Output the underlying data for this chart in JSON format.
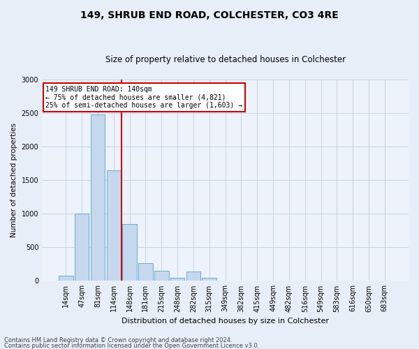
{
  "title": "149, SHRUB END ROAD, COLCHESTER, CO3 4RE",
  "subtitle": "Size of property relative to detached houses in Colchester",
  "xlabel": "Distribution of detached houses by size in Colchester",
  "ylabel": "Number of detached properties",
  "categories": [
    "14sqm",
    "47sqm",
    "81sqm",
    "114sqm",
    "148sqm",
    "181sqm",
    "215sqm",
    "248sqm",
    "282sqm",
    "315sqm",
    "349sqm",
    "382sqm",
    "415sqm",
    "449sqm",
    "482sqm",
    "516sqm",
    "549sqm",
    "583sqm",
    "616sqm",
    "650sqm",
    "683sqm"
  ],
  "values": [
    75,
    1000,
    2475,
    1650,
    850,
    265,
    150,
    50,
    140,
    50,
    0,
    0,
    0,
    0,
    0,
    0,
    0,
    0,
    0,
    0,
    0
  ],
  "bar_color": "#c5d8ee",
  "bar_edge_color": "#6aacd4",
  "vline_color": "#cc0000",
  "vline_x": 4,
  "annotation_text": "149 SHRUB END ROAD: 140sqm\n← 75% of detached houses are smaller (4,821)\n25% of semi-detached houses are larger (1,603) →",
  "annotation_box_facecolor": "#ffffff",
  "annotation_box_edgecolor": "#cc0000",
  "ylim": [
    0,
    3000
  ],
  "yticks": [
    0,
    500,
    1000,
    1500,
    2000,
    2500,
    3000
  ],
  "footer1": "Contains HM Land Registry data © Crown copyright and database right 2024.",
  "footer2": "Contains public sector information licensed under the Open Government Licence v3.0.",
  "bg_color": "#e8eef8",
  "plot_bg_color": "#edf2fb",
  "grid_color": "#c0cfe0",
  "title_fontsize": 10,
  "subtitle_fontsize": 8.5,
  "xlabel_fontsize": 8,
  "ylabel_fontsize": 7.5,
  "tick_fontsize": 7,
  "ann_fontsize": 7,
  "footer_fontsize": 6
}
